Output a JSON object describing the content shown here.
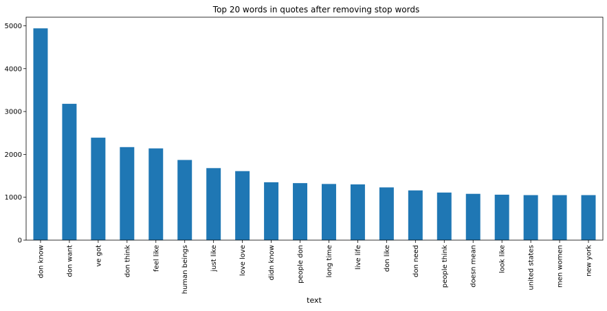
{
  "chart_data": {
    "type": "bar",
    "title": "Top 20 words in quotes after removing stop words",
    "xlabel": "text",
    "ylabel": "",
    "categories": [
      "don know",
      "don want",
      "ve got",
      "don think",
      "feel like",
      "human beings",
      "just like",
      "love love",
      "didn know",
      "people don",
      "long time",
      "live life",
      "don like",
      "don need",
      "people think",
      "doesn mean",
      "look like",
      "united states",
      "men women",
      "new york"
    ],
    "values": [
      4940,
      3180,
      2390,
      2170,
      2140,
      1870,
      1680,
      1610,
      1350,
      1330,
      1310,
      1300,
      1230,
      1160,
      1110,
      1080,
      1060,
      1050,
      1050,
      1050
    ],
    "yticks": [
      0,
      1000,
      2000,
      3000,
      4000,
      5000
    ],
    "ylim": [
      0,
      5200
    ],
    "grid": false,
    "bar_color": "#1f77b4"
  }
}
